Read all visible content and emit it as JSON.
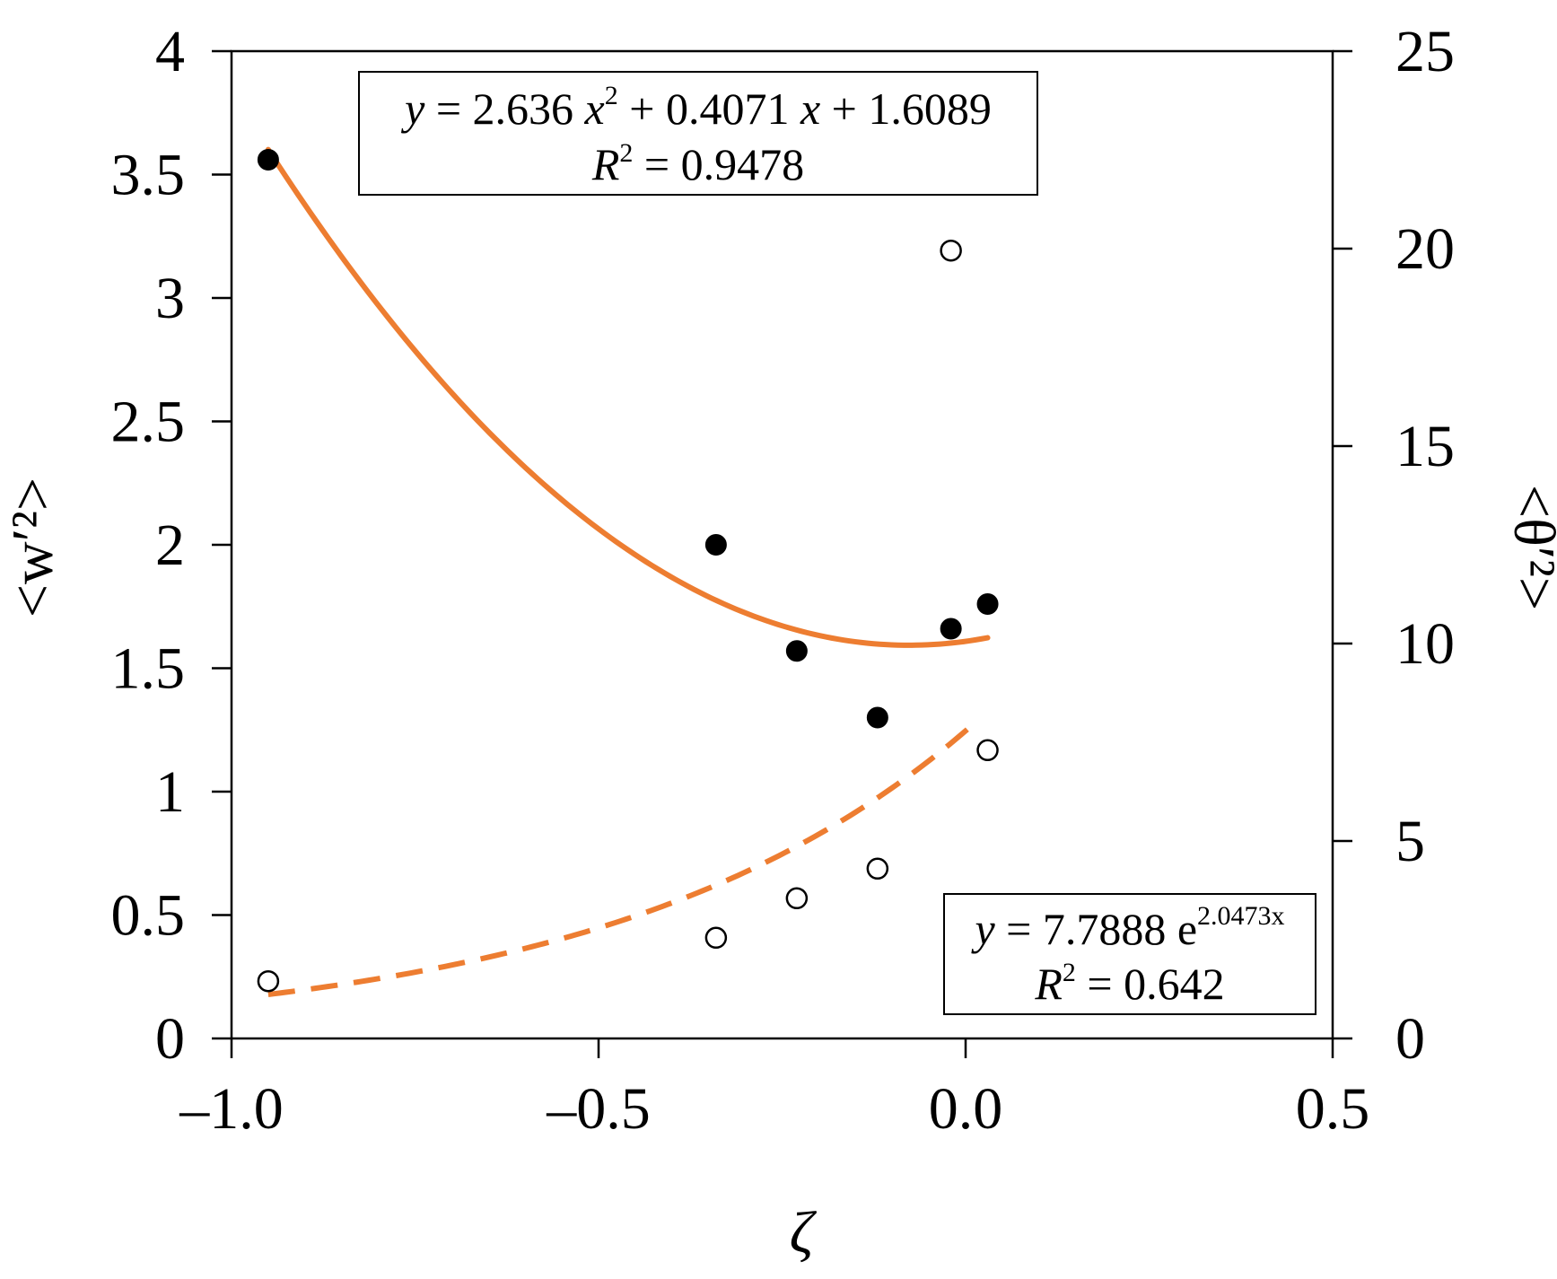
{
  "chart_data": {
    "type": "scatter",
    "title": "",
    "xlabel": "ζ",
    "ylabel_left": "<w′²>",
    "ylabel_right": "<θ′²>",
    "xlim": [
      -1.0,
      0.5
    ],
    "ylim_left": [
      0,
      4
    ],
    "ylim_right": [
      0,
      25
    ],
    "grid": false,
    "x_ticks": [
      {
        "value": -1.0,
        "label": "–1.0"
      },
      {
        "value": -0.5,
        "label": "–0.5"
      },
      {
        "value": 0.0,
        "label": "0.0"
      },
      {
        "value": 0.5,
        "label": "0.5"
      }
    ],
    "y_left_ticks": [
      {
        "value": 0,
        "label": "0"
      },
      {
        "value": 0.5,
        "label": "0.5"
      },
      {
        "value": 1,
        "label": "1"
      },
      {
        "value": 1.5,
        "label": "1.5"
      },
      {
        "value": 2,
        "label": "2"
      },
      {
        "value": 2.5,
        "label": "2.5"
      },
      {
        "value": 3,
        "label": "3"
      },
      {
        "value": 3.5,
        "label": "3.5"
      },
      {
        "value": 4,
        "label": "4"
      }
    ],
    "y_right_ticks": [
      {
        "value": 0,
        "label": "0"
      },
      {
        "value": 5,
        "label": "5"
      },
      {
        "value": 10,
        "label": "10"
      },
      {
        "value": 15,
        "label": "15"
      },
      {
        "value": 20,
        "label": "20"
      },
      {
        "value": 25,
        "label": "25"
      }
    ],
    "series": [
      {
        "name": "<w′²>",
        "axis": "left",
        "marker": "filled-circle",
        "color": "#000000",
        "points": [
          {
            "x": -0.95,
            "y": 3.56
          },
          {
            "x": -0.34,
            "y": 2.0
          },
          {
            "x": -0.23,
            "y": 1.57
          },
          {
            "x": -0.12,
            "y": 1.3
          },
          {
            "x": -0.02,
            "y": 1.66
          },
          {
            "x": 0.03,
            "y": 1.76
          }
        ]
      },
      {
        "name": "<θ′²>",
        "axis": "right",
        "marker": "open-circle",
        "color": "#000000",
        "points": [
          {
            "x": -0.95,
            "y": 1.45
          },
          {
            "x": -0.34,
            "y": 2.55
          },
          {
            "x": -0.23,
            "y": 3.55
          },
          {
            "x": -0.12,
            "y": 4.3
          },
          {
            "x": -0.02,
            "y": 19.95
          },
          {
            "x": 0.03,
            "y": 7.3
          }
        ]
      }
    ],
    "fits": [
      {
        "name": "quadratic fit of <w′²>",
        "axis": "left",
        "kind": "polynomial",
        "coefficients": [
          2.636,
          0.4071,
          1.6089
        ],
        "x_range": [
          -0.95,
          0.03
        ],
        "style": "solid",
        "color": "#ED7D31",
        "equation": {
          "prefix": "y",
          "body": " = 2.636 ",
          "x1": "x",
          "exp1": "2",
          "body2": " + 0.4071 ",
          "x2": "x",
          "body3": " + 1.6089"
        },
        "r2": {
          "prefix": "R",
          "exp": "2",
          "body": " = 0.9478"
        }
      },
      {
        "name": "exponential fit of <θ′²>",
        "axis": "right",
        "kind": "exponential",
        "a": 7.7888,
        "b": 2.0473,
        "x_range": [
          -0.95,
          0.01
        ],
        "style": "dashed",
        "color": "#ED7D31",
        "equation": {
          "prefix": "y",
          "body": " = 7.7888 e",
          "exp": "2.0473x"
        },
        "r2": {
          "prefix": "R",
          "exp": "2",
          "body": " = 0.642"
        }
      }
    ]
  }
}
